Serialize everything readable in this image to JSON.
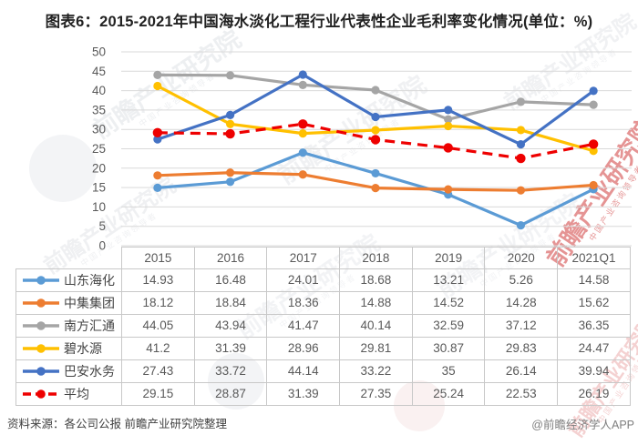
{
  "page": {
    "title": "图表6：2015-2021年中国海水淡化工程行业代表性企业毛利率变化情况(单位：%)"
  },
  "footer": {
    "source": "资料来源：各公司公报 前瞻产业研究院整理",
    "credit": "@前瞻经济学人APP"
  },
  "watermark": {
    "brand": "前瞻产业研究院",
    "tagline": "中国产业咨询领导者",
    "gray_color": "#8a94a6",
    "accent_color": "#c00000"
  },
  "chart_data": {
    "type": "line",
    "title": "图表6：2015-2021年中国海水淡化工程行业代表性企业毛利率变化情况(单位：%)",
    "unit": "%",
    "categories": [
      "2015",
      "2016",
      "2017",
      "2018",
      "2019",
      "2020",
      "2021Q1"
    ],
    "series": [
      {
        "name": "山东海化",
        "color": "#5B9BD5",
        "dashed": false,
        "values": [
          14.93,
          16.48,
          24.01,
          18.68,
          13.21,
          5.26,
          14.58
        ]
      },
      {
        "name": "中集集团",
        "color": "#ED7D31",
        "dashed": false,
        "values": [
          18.12,
          18.84,
          18.36,
          14.88,
          14.52,
          14.28,
          15.62
        ]
      },
      {
        "name": "南方汇通",
        "color": "#A5A5A5",
        "dashed": false,
        "values": [
          44.05,
          43.94,
          41.47,
          40.14,
          32.59,
          37.12,
          36.35
        ]
      },
      {
        "name": "碧水源",
        "color": "#FFC000",
        "dashed": false,
        "values": [
          41.2,
          31.39,
          28.96,
          29.81,
          30.87,
          29.83,
          24.47
        ]
      },
      {
        "name": "巴安水务",
        "color": "#4472C4",
        "dashed": false,
        "values": [
          27.43,
          33.72,
          44.14,
          33.22,
          35,
          26.14,
          39.94
        ]
      },
      {
        "name": "平均",
        "color": "#EE0000",
        "dashed": true,
        "values": [
          29.15,
          28.87,
          31.39,
          27.35,
          25.24,
          22.53,
          26.19
        ]
      }
    ],
    "ylim": [
      0,
      50
    ],
    "ytick_step": 5,
    "grid": true,
    "gridline_color": "#D9D9D9",
    "axis_label_color": "#595959",
    "legend_position": "table-left"
  }
}
